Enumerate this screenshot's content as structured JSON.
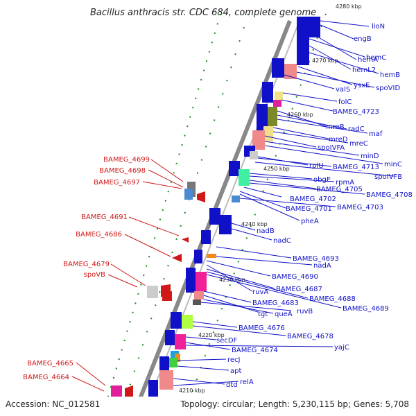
{
  "title": "Bacillus anthracis str. CDC 684, complete genome",
  "accession": "Accession: NC_012581",
  "topology": "Topology: circular; Length: 5,230,115 bp; Genes: 5,708",
  "kbp_ticks": [
    "4280 kbp",
    "4270 kbp",
    "4260 kbp",
    "4250 kbp",
    "4240 kbp",
    "4230 kbp",
    "4220 kbp",
    "4210 kbp"
  ],
  "blue_labels": [
    "lioN",
    "engB",
    "hemA",
    "hemC",
    "hemL2",
    "hemB",
    "ysxE",
    "spoVID",
    "valS",
    "folC",
    "BAMEG_4723",
    "mreB",
    "radC",
    "maf",
    "mreD",
    "mreC",
    "spoIVFA",
    "minD",
    "minC",
    "rplU",
    "BAMEG_4713",
    "spoIVFB",
    "obgE",
    "rpmA",
    "BAMEG_4705",
    "BAMEG_4708",
    "BAMEG_4702",
    "BAMEG_4703",
    "BAMEG_4701",
    "pheA",
    "nadB",
    "nadC",
    "BAMEG_4693",
    "nadA",
    "BAMEG_4690",
    "ruvA",
    "BAMEG_4687",
    "BAMEG_4688",
    "BAMEG_4683",
    "BAMEG_4689",
    "tgt",
    "queA",
    "ruvB",
    "BAMEG_4676",
    "BAMEG_4678",
    "secDF",
    "BAMEG_4674",
    "yajC",
    "recJ",
    "apt",
    "dtd",
    "relA"
  ],
  "red_labels": [
    "BAMEG_4699",
    "BAMEG_4698",
    "BAMEG_4697",
    "BAMEG_4691",
    "BAMEG_4686",
    "BAMEG_4679",
    "spoVB",
    "BAMEG_4665",
    "BAMEG_4664"
  ],
  "colors": {
    "forward": "#1010c8",
    "reverse": "#d01818",
    "backbone": "#888888",
    "tick": "#1a8a1a"
  }
}
